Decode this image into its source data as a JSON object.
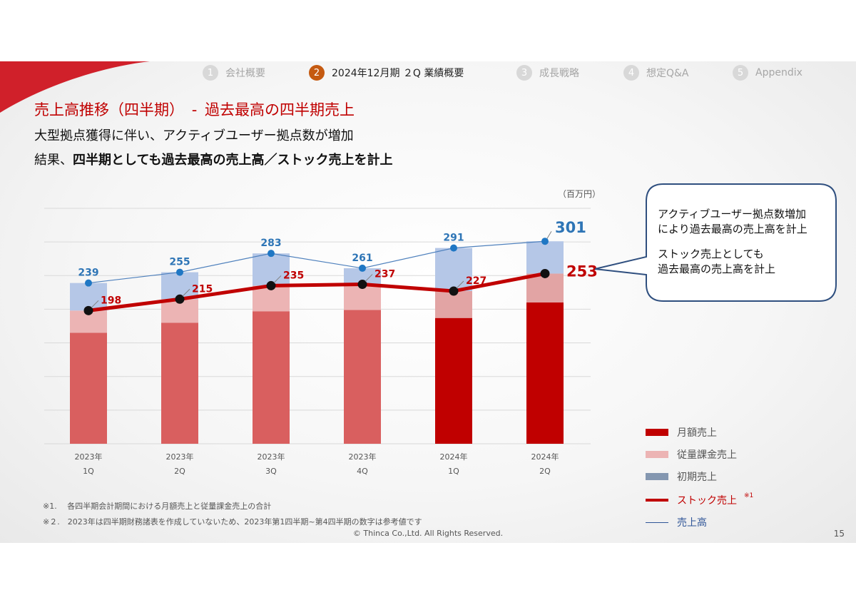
{
  "nav": [
    {
      "num": "1",
      "label": "会社概要"
    },
    {
      "num": "2",
      "label": "2024年12月期 ２Q 業績概要"
    },
    {
      "num": "3",
      "label": "成長戦略"
    },
    {
      "num": "4",
      "label": "想定Q&A"
    },
    {
      "num": "5",
      "label": "Appendix"
    }
  ],
  "title": {
    "main": "売上高推移（四半期）",
    "sep": "-",
    "sub": "過去最高の四半期売上"
  },
  "subtitle1": "大型拠点獲得に伴い、アクティブユーザー拠点数が増加",
  "subtitle2": {
    "prefix": "結果、",
    "bold": "四半期としても過去最高の売上高／ストック売上を計上"
  },
  "callout": {
    "line1": "アクティブユーザー拠点数増加",
    "line2": "により過去最高の売上高を計上",
    "line3": "ストック売上としても",
    "line4": "過去最高の売上高を計上"
  },
  "colors": {
    "monthly_historical": "#d95f5f",
    "monthly_2024": "#c00000",
    "usage_historical": "#ecb4b4",
    "usage_2024": "#e2a4a4",
    "initial": "#b5c7e7",
    "stock_line": "#c00000",
    "total_line": "#4f81bd",
    "total_label": "#2e75b6",
    "stock_label": "#c00000",
    "brand_red": "#c00000",
    "active_step": "#c55a11"
  },
  "chart_data": {
    "type": "bar",
    "unit": "（百万円）",
    "categories": [
      {
        "year": "2023年",
        "q": "1Q"
      },
      {
        "year": "2023年",
        "q": "2Q"
      },
      {
        "year": "2023年",
        "q": "3Q"
      },
      {
        "year": "2023年",
        "q": "4Q"
      },
      {
        "year": "2024年",
        "q": "1Q"
      },
      {
        "year": "2024年",
        "q": "2Q"
      }
    ],
    "ylim": [
      0,
      350
    ],
    "grid": true,
    "series": [
      {
        "name": "月額売上",
        "kind": "stacked-bar",
        "values": [
          165,
          180,
          197,
          199,
          187,
          210
        ]
      },
      {
        "name": "従量課金売上",
        "kind": "stacked-bar",
        "values": [
          33,
          35,
          38,
          38,
          40,
          43
        ]
      },
      {
        "name": "初期売上",
        "kind": "stacked-bar",
        "values": [
          41,
          40,
          48,
          24,
          64,
          48
        ]
      },
      {
        "name": "ストック売上",
        "kind": "line",
        "values": [
          198,
          215,
          235,
          237,
          227,
          253
        ]
      },
      {
        "name": "売上高",
        "kind": "line",
        "values": [
          239,
          255,
          283,
          261,
          291,
          301
        ]
      }
    ],
    "legend": [
      {
        "label": "月額売上",
        "type": "bar",
        "color_key": "monthly_2024"
      },
      {
        "label": "従量課金売上",
        "type": "bar",
        "color_key": "usage_historical"
      },
      {
        "label": "初期売上",
        "type": "bar",
        "color_key": "total_line"
      },
      {
        "label": "ストック売上",
        "type": "line-thick",
        "color_key": "stock_line",
        "note": "※1"
      },
      {
        "label": "売上高",
        "type": "line-thin",
        "color_key": "total_line"
      }
    ],
    "legend_position": "right"
  },
  "notes": [
    "※1.　 各四半期会計期間における月額売上と従量課金売上の合計",
    "※２.　2023年は四半期財務諸表を作成していないため、2023年第1四半期~第4四半期の数字は参考値です"
  ],
  "copyright": "© Thinca Co.,Ltd. All Rights Reserved.",
  "page_number": "15"
}
